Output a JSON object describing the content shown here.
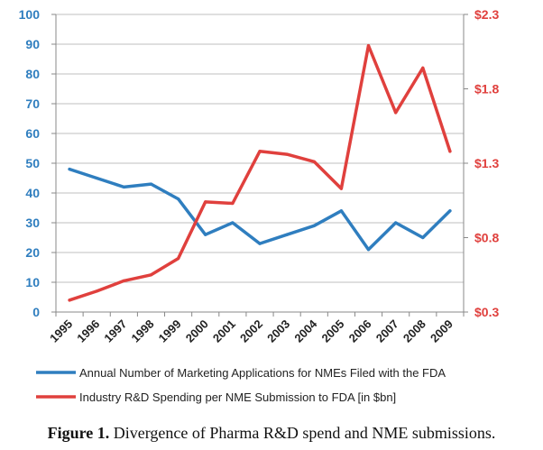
{
  "chart_data": {
    "type": "line",
    "categories": [
      "1995",
      "1996",
      "1997",
      "1998",
      "1999",
      "2000",
      "2001",
      "2002",
      "2003",
      "2004",
      "2005",
      "2006",
      "2007",
      "2008",
      "2009"
    ],
    "series": [
      {
        "name": "Annual Number of Marketing Applications for NMEs Filed with the FDA",
        "axis": "left",
        "color": "#2f7ebf",
        "values": [
          48,
          45,
          42,
          43,
          38,
          26,
          30,
          23,
          26,
          29,
          34,
          21,
          30,
          25,
          34
        ]
      },
      {
        "name": "Industry R&D Spending per NME Submission  to FDA [in $bn]",
        "axis": "right",
        "color": "#e0403d",
        "values": [
          0.38,
          0.44,
          0.51,
          0.55,
          0.66,
          1.04,
          1.03,
          1.38,
          1.36,
          1.31,
          1.13,
          2.09,
          1.64,
          1.94,
          1.38
        ]
      }
    ],
    "ylim_left": [
      0,
      100
    ],
    "yticks_left": [
      "0",
      "10",
      "20",
      "30",
      "40",
      "50",
      "60",
      "70",
      "80",
      "90",
      "100"
    ],
    "ylim_right": [
      0.3,
      2.3
    ],
    "yticks_right": [
      "$0.3",
      "$0.8",
      "$1.3",
      "$1.8",
      "$2.3"
    ],
    "grid": true,
    "legend_position": "bottom"
  },
  "caption": {
    "label": "Figure 1.",
    "text": "Divergence of Pharma R&D spend and NME submissions."
  }
}
